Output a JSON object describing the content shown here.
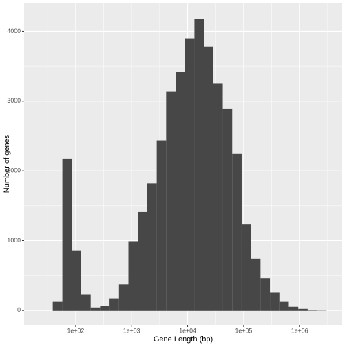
{
  "chart_data": {
    "type": "histogram",
    "x_label": "Gene Length (bp)",
    "y_label": "Number of genes",
    "bins": [
      39,
      57.9,
      85.3,
      125.8,
      185.4,
      273.3,
      402.7,
      593.6,
      874.9,
      1289.7,
      1901,
      2802,
      4130,
      6087,
      8974,
      13227,
      19498,
      28740,
      42364,
      62445,
      92045,
      135676,
      199986,
      294782,
      434510,
      640474,
      944061,
      1391546,
      2051155,
      3023425
    ],
    "counts": [
      130,
      2170,
      860,
      230,
      40,
      60,
      170,
      370,
      990,
      1410,
      1820,
      2430,
      3140,
      3420,
      3900,
      4180,
      3780,
      3250,
      2890,
      2250,
      1230,
      740,
      460,
      260,
      130,
      50,
      20,
      5,
      3
    ],
    "color": "#474747",
    "xlog": true,
    "xlim": [
      12,
      5750000
    ],
    "ylim": [
      -209,
      4399
    ],
    "xticks": [
      {
        "value": 100,
        "label": "1e+02"
      },
      {
        "value": 1000,
        "label": "1e+03"
      },
      {
        "value": 10000,
        "label": "1e+04"
      },
      {
        "value": 100000,
        "label": "1e+05"
      },
      {
        "value": 1000000,
        "label": "1e+06"
      }
    ],
    "yticks": [
      0,
      1000,
      2000,
      3000,
      4000
    ],
    "grid": true
  }
}
